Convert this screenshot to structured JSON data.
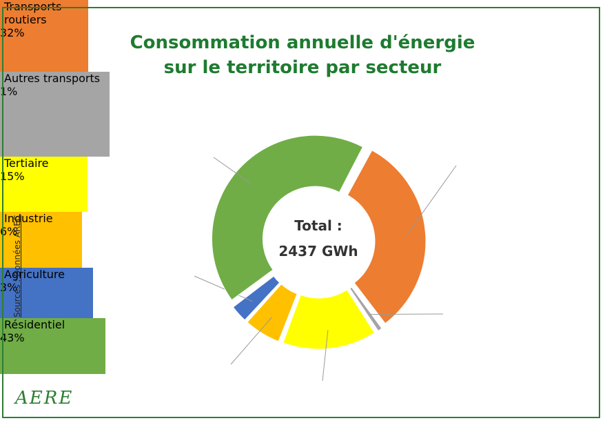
{
  "chart_data": {
    "type": "donut",
    "title": "Consommation annuelle d'énergie sur le territoire par secteur",
    "categories": [
      "Transports routiers",
      "Autres transports",
      "Tertiaire",
      "Industrie",
      "Agriculture",
      "Résidentiel"
    ],
    "values": [
      32,
      1,
      15,
      6,
      3,
      43
    ],
    "value_labels": [
      "32%",
      "1%",
      "15%",
      "6%",
      "3%",
      "43%"
    ],
    "colors": [
      "#ed7d31",
      "#a5a5a5",
      "#ffff00",
      "#ffc000",
      "#4472c4",
      "#70ad47"
    ],
    "center_label": [
      "Total :",
      "2437 GWh"
    ],
    "source": "Sources : Données AREC",
    "logo": "AERE"
  }
}
